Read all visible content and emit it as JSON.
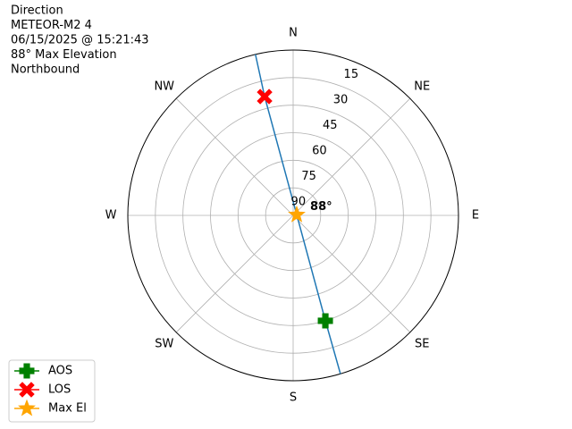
{
  "chart_data": {
    "type": "polar",
    "title_lines": [
      "Direction",
      "METEOR-M2 4",
      "06/15/2025 @ 15:21:43",
      "88° Max Elevation",
      "Northbound"
    ],
    "rlim": [
      90,
      0
    ],
    "rticks": [
      15,
      30,
      45,
      60,
      75,
      90
    ],
    "thetaticks": [
      {
        "value": 0,
        "label": "N"
      },
      {
        "value": 45,
        "label": "NE"
      },
      {
        "value": 90,
        "label": "E"
      },
      {
        "value": 135,
        "label": "SE"
      },
      {
        "value": 180,
        "label": "S"
      },
      {
        "value": 225,
        "label": "SW"
      },
      {
        "value": 270,
        "label": "W"
      },
      {
        "value": 315,
        "label": "NW"
      }
    ],
    "grid": true,
    "track": {
      "color": "#1f77b4",
      "azimuth": [
        346.8,
        346.5,
        80,
        163,
        163.4
      ],
      "elevation": [
        0,
        23.5,
        88,
        30,
        0
      ]
    },
    "series": [
      {
        "name": "AOS",
        "color": "green",
        "marker": "plus",
        "azimuth": [
          163
        ],
        "elevation": [
          30
        ]
      },
      {
        "name": "LOS",
        "color": "red",
        "marker": "x",
        "azimuth": [
          346.5
        ],
        "elevation": [
          23.5
        ]
      },
      {
        "name": "Max El",
        "color": "orange",
        "marker": "star",
        "azimuth": [
          80
        ],
        "elevation": [
          88
        ]
      }
    ],
    "annotation": "88°",
    "legend": "lower left"
  }
}
